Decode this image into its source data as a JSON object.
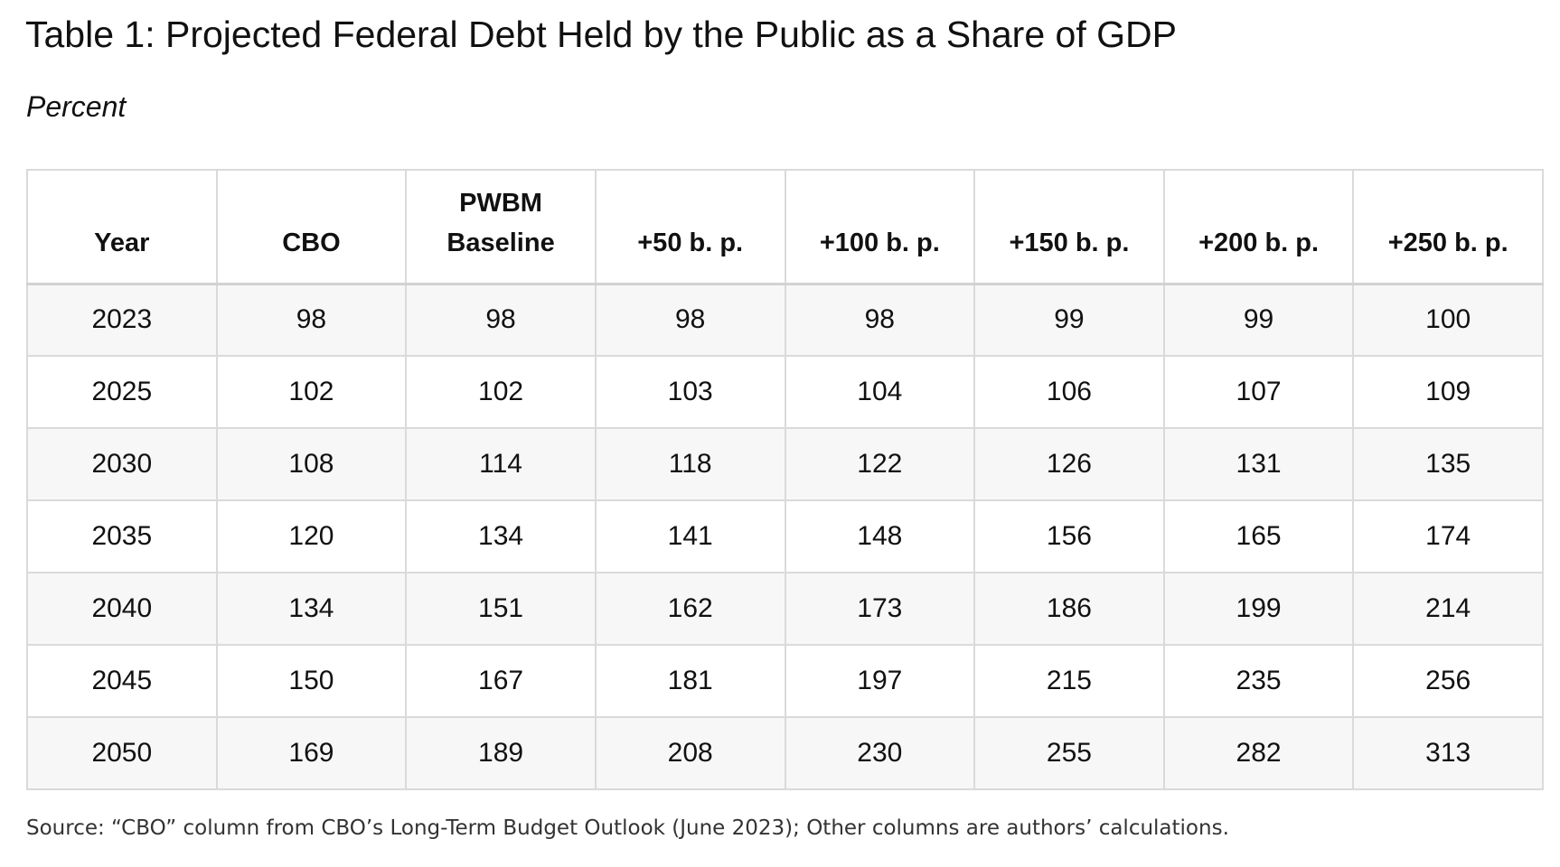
{
  "title": "Table 1: Projected Federal Debt Held by the Public as a Share of GDP",
  "subtitle": "Percent",
  "table": {
    "headers": [
      [
        "Year"
      ],
      [
        "CBO"
      ],
      [
        "PWBM",
        "Baseline"
      ],
      [
        "+50 b. p."
      ],
      [
        "+100 b. p."
      ],
      [
        "+150 b. p."
      ],
      [
        "+200 b. p."
      ],
      [
        "+250 b. p."
      ]
    ],
    "rows": [
      [
        "2023",
        "98",
        "98",
        "98",
        "98",
        "99",
        "99",
        "100"
      ],
      [
        "2025",
        "102",
        "102",
        "103",
        "104",
        "106",
        "107",
        "109"
      ],
      [
        "2030",
        "108",
        "114",
        "118",
        "122",
        "126",
        "131",
        "135"
      ],
      [
        "2035",
        "120",
        "134",
        "141",
        "148",
        "156",
        "165",
        "174"
      ],
      [
        "2040",
        "134",
        "151",
        "162",
        "173",
        "186",
        "199",
        "214"
      ],
      [
        "2045",
        "150",
        "167",
        "181",
        "197",
        "215",
        "235",
        "256"
      ],
      [
        "2050",
        "169",
        "189",
        "208",
        "230",
        "255",
        "282",
        "313"
      ]
    ]
  },
  "source": "Source: “CBO” column from CBO’s Long-Term Budget Outlook (June 2023); Other columns are authors’ calculations.",
  "colors": {
    "border": "#dadada",
    "stripe": "#f7f7f7",
    "text": "#111111"
  }
}
